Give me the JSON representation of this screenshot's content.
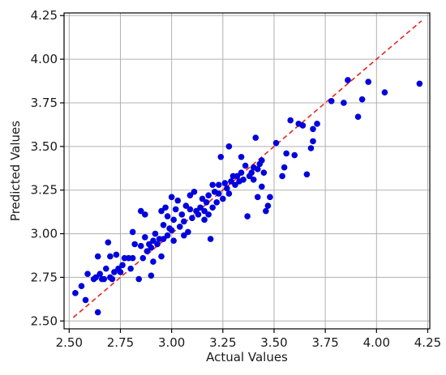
{
  "chart_data": {
    "type": "scatter",
    "title": "",
    "xlabel": "Actual Values",
    "ylabel": "Predicted Values",
    "xlim": [
      2.475,
      4.26
    ],
    "ylim": [
      2.455,
      4.265
    ],
    "xticks": [
      "2.50",
      "2.75",
      "3.00",
      "3.25",
      "3.50",
      "3.75",
      "4.00",
      "4.25"
    ],
    "yticks": [
      "2.50",
      "2.75",
      "3.00",
      "3.25",
      "3.50",
      "3.75",
      "4.00",
      "4.25"
    ],
    "grid": true,
    "colors": {
      "points": "#0000dd",
      "reference_line": "#e8231f"
    },
    "reference_line": {
      "style": "dashed",
      "from": [
        2.52,
        2.52
      ],
      "to": [
        4.22,
        4.22
      ]
    },
    "points": [
      [
        2.53,
        2.66
      ],
      [
        2.56,
        2.7
      ],
      [
        2.58,
        2.62
      ],
      [
        2.59,
        2.77
      ],
      [
        2.62,
        2.74
      ],
      [
        2.63,
        2.75
      ],
      [
        2.64,
        2.55
      ],
      [
        2.64,
        2.87
      ],
      [
        2.65,
        2.77
      ],
      [
        2.66,
        2.74
      ],
      [
        2.67,
        2.74
      ],
      [
        2.68,
        2.8
      ],
      [
        2.69,
        2.95
      ],
      [
        2.7,
        2.75
      ],
      [
        2.7,
        2.87
      ],
      [
        2.71,
        2.74
      ],
      [
        2.72,
        2.78
      ],
      [
        2.73,
        2.88
      ],
      [
        2.74,
        2.8
      ],
      [
        2.75,
        2.78
      ],
      [
        2.76,
        2.82
      ],
      [
        2.77,
        2.86
      ],
      [
        2.79,
        2.86
      ],
      [
        2.8,
        2.8
      ],
      [
        2.81,
        2.86
      ],
      [
        2.81,
        3.01
      ],
      [
        2.82,
        2.94
      ],
      [
        2.84,
        2.74
      ],
      [
        2.85,
        2.93
      ],
      [
        2.85,
        3.13
      ],
      [
        2.86,
        2.86
      ],
      [
        2.87,
        2.98
      ],
      [
        2.87,
        3.11
      ],
      [
        2.88,
        2.9
      ],
      [
        2.89,
        2.94
      ],
      [
        2.9,
        2.76
      ],
      [
        2.9,
        2.92
      ],
      [
        2.91,
        2.84
      ],
      [
        2.91,
        2.96
      ],
      [
        2.92,
        3.0
      ],
      [
        2.93,
        2.94
      ],
      [
        2.94,
        2.97
      ],
      [
        2.95,
        2.87
      ],
      [
        2.95,
        3.13
      ],
      [
        2.96,
        2.97
      ],
      [
        2.96,
        3.05
      ],
      [
        2.97,
        3.15
      ],
      [
        2.98,
        2.99
      ],
      [
        2.98,
        3.1
      ],
      [
        2.99,
        3.03
      ],
      [
        3.0,
        3.21
      ],
      [
        3.0,
        3.02
      ],
      [
        3.01,
        2.96
      ],
      [
        3.01,
        3.08
      ],
      [
        3.02,
        3.14
      ],
      [
        3.03,
        3.19
      ],
      [
        3.04,
        3.04
      ],
      [
        3.05,
        3.11
      ],
      [
        3.06,
        3.07
      ],
      [
        3.06,
        2.99
      ],
      [
        3.07,
        3.16
      ],
      [
        3.08,
        3.01
      ],
      [
        3.09,
        3.14
      ],
      [
        3.09,
        3.22
      ],
      [
        3.1,
        3.09
      ],
      [
        3.11,
        3.24
      ],
      [
        3.12,
        3.13
      ],
      [
        3.13,
        3.11
      ],
      [
        3.14,
        3.15
      ],
      [
        3.15,
        3.2
      ],
      [
        3.16,
        3.13
      ],
      [
        3.16,
        3.08
      ],
      [
        3.17,
        3.18
      ],
      [
        3.18,
        3.11
      ],
      [
        3.18,
        3.22
      ],
      [
        3.19,
        2.97
      ],
      [
        3.2,
        3.28
      ],
      [
        3.2,
        3.15
      ],
      [
        3.21,
        3.24
      ],
      [
        3.22,
        3.18
      ],
      [
        3.23,
        3.23
      ],
      [
        3.23,
        3.28
      ],
      [
        3.24,
        3.44
      ],
      [
        3.25,
        3.2
      ],
      [
        3.26,
        3.29
      ],
      [
        3.27,
        3.26
      ],
      [
        3.28,
        3.23
      ],
      [
        3.28,
        3.5
      ],
      [
        3.29,
        3.3
      ],
      [
        3.3,
        3.33
      ],
      [
        3.31,
        3.28
      ],
      [
        3.32,
        3.33
      ],
      [
        3.33,
        3.3
      ],
      [
        3.34,
        3.35
      ],
      [
        3.34,
        3.44
      ],
      [
        3.35,
        3.31
      ],
      [
        3.36,
        3.39
      ],
      [
        3.37,
        3.1
      ],
      [
        3.38,
        3.33
      ],
      [
        3.39,
        3.35
      ],
      [
        3.4,
        3.31
      ],
      [
        3.4,
        3.38
      ],
      [
        3.41,
        3.55
      ],
      [
        3.42,
        3.21
      ],
      [
        3.42,
        3.37
      ],
      [
        3.43,
        3.4
      ],
      [
        3.44,
        3.42
      ],
      [
        3.44,
        3.27
      ],
      [
        3.45,
        3.35
      ],
      [
        3.46,
        3.13
      ],
      [
        3.47,
        3.16
      ],
      [
        3.48,
        3.21
      ],
      [
        3.51,
        3.52
      ],
      [
        3.54,
        3.33
      ],
      [
        3.55,
        3.38
      ],
      [
        3.56,
        3.46
      ],
      [
        3.58,
        3.65
      ],
      [
        3.6,
        3.45
      ],
      [
        3.62,
        3.63
      ],
      [
        3.64,
        3.62
      ],
      [
        3.66,
        3.34
      ],
      [
        3.68,
        3.49
      ],
      [
        3.69,
        3.53
      ],
      [
        3.69,
        3.6
      ],
      [
        3.71,
        3.63
      ],
      [
        3.78,
        3.76
      ],
      [
        3.84,
        3.75
      ],
      [
        3.86,
        3.88
      ],
      [
        3.91,
        3.67
      ],
      [
        3.93,
        3.77
      ],
      [
        3.96,
        3.87
      ],
      [
        4.04,
        3.81
      ],
      [
        4.21,
        3.86
      ]
    ]
  }
}
